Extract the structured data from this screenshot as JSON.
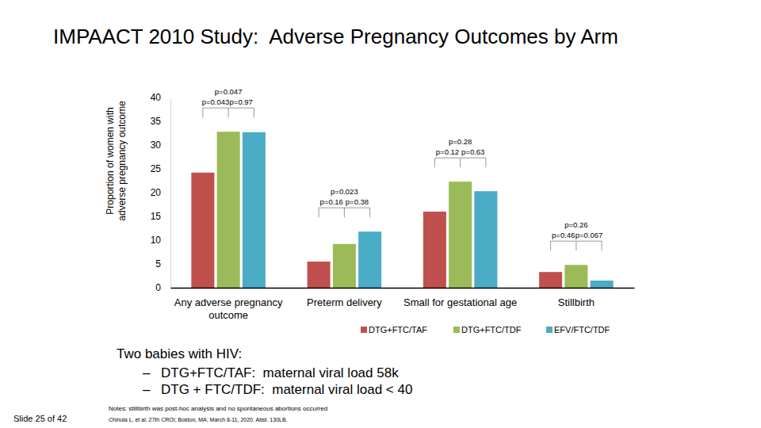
{
  "chart_data": {
    "type": "bar",
    "title": "IMPAACT 2010 Study:  Adverse Pregnancy Outcomes by Arm",
    "y_label": [
      "Proportion of women with",
      "adverse pregnancy outcome"
    ],
    "categories": [
      "Any adverse pregnancy outcome",
      "Preterm delivery",
      "Small for gestational age",
      "Stillbirth"
    ],
    "series": [
      {
        "name": "DTG+FTC/TAF",
        "color": "#c0504d",
        "values": [
          24.2,
          5.5,
          16.0,
          3.3
        ]
      },
      {
        "name": "DTG+FTC/TDF",
        "color": "#9bbb59",
        "values": [
          32.8,
          9.2,
          22.3,
          4.8
        ]
      },
      {
        "name": "EFV/FTC/TDF",
        "color": "#4bacc6",
        "values": [
          32.7,
          11.8,
          20.3,
          1.5
        ]
      }
    ],
    "ylim": [
      0,
      40
    ],
    "yticks": [
      0,
      5,
      10,
      15,
      20,
      25,
      30,
      35,
      40
    ],
    "grid": false,
    "legend": "bottom",
    "annotations": [
      [
        "p=0.047",
        "p=0.043",
        "p=0.97"
      ],
      [
        "p=0.023",
        "p=0.16",
        "p=0.38"
      ],
      [
        "p=0.28",
        "p=0.12",
        "p=0.63"
      ],
      [
        "p=0.26",
        "p=0.46",
        "p=0.067"
      ]
    ]
  },
  "notes": {
    "heading": "Two babies with HIV:",
    "bullet": "–",
    "items": [
      "DTG+FTC/TAF:  maternal viral load 58k",
      "DTG + FTC/TDF:  maternal viral load < 40"
    ]
  },
  "footer": {
    "note": "Notes: stillbirth was post-hoc analysis and no spontaneous abortions occurred",
    "citation": "Chinula L, et al. 27th CROI; Boston, MA; March 8-11, 2020. Abst. 130LB.",
    "slide": "Slide 25 of 42"
  }
}
